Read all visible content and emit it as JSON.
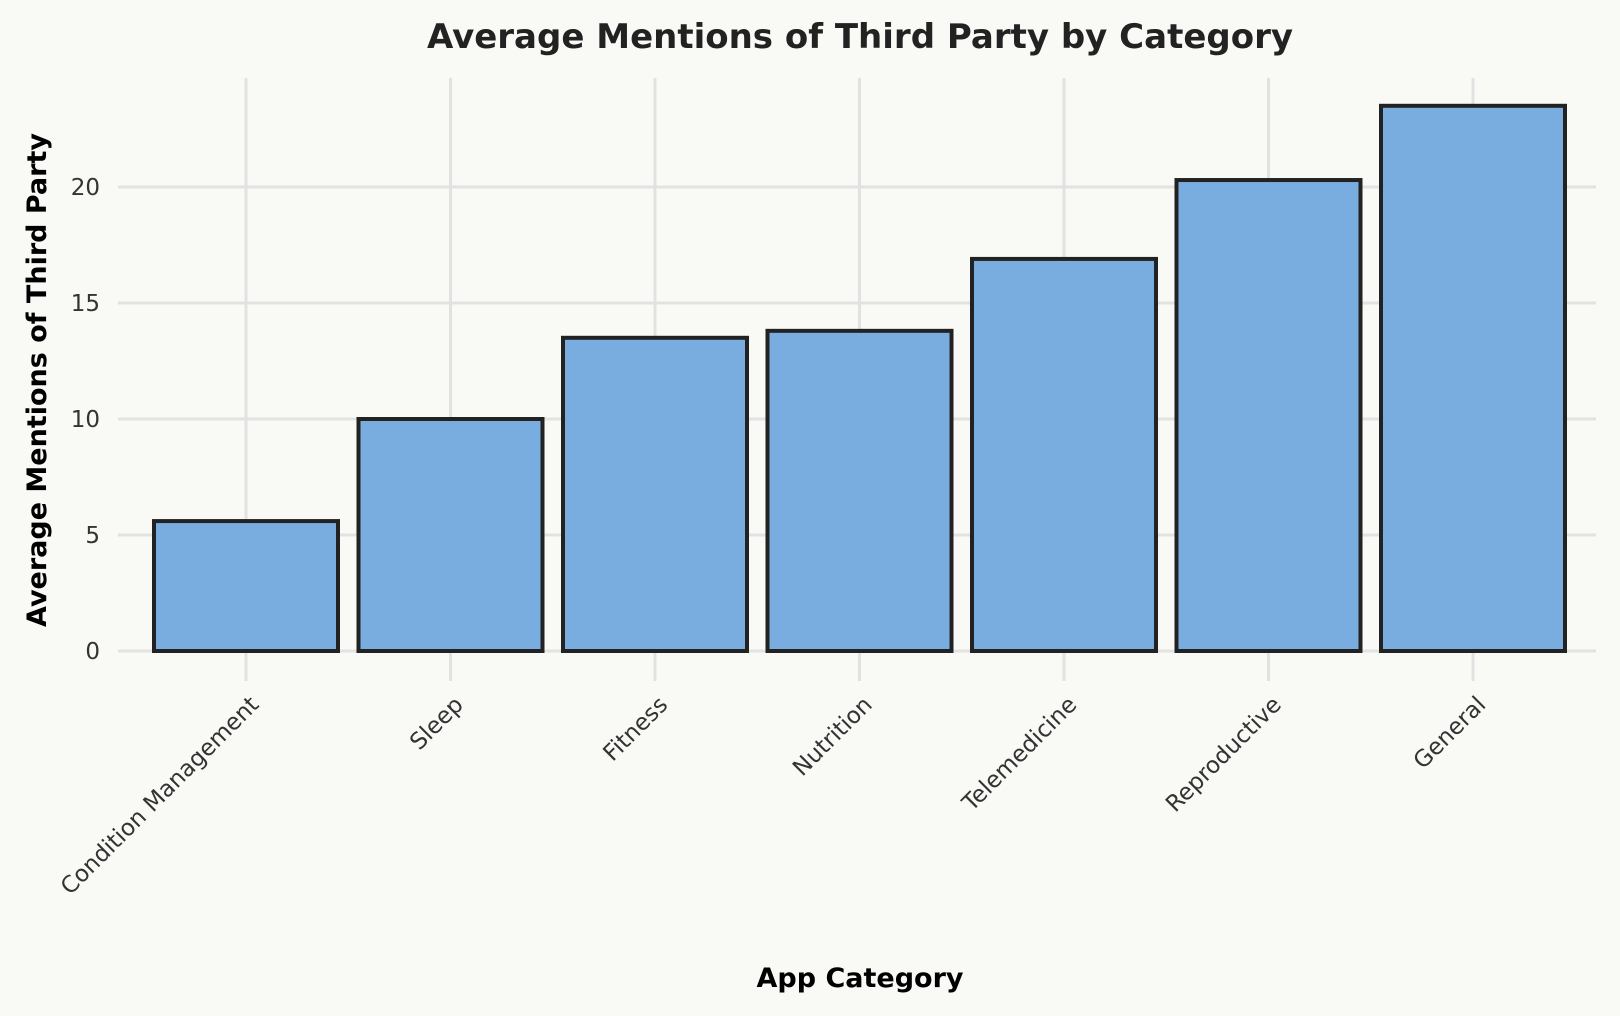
{
  "chart_data": {
    "type": "bar",
    "title": "Average Mentions of Third Party by Category",
    "xlabel": "App Category",
    "ylabel": "Average Mentions of Third Party",
    "categories": [
      "Condition Management",
      "Sleep",
      "Fitness",
      "Nutrition",
      "Telemedicine",
      "Reproductive",
      "General"
    ],
    "values": [
      5.6,
      10.0,
      13.5,
      13.8,
      16.9,
      20.3,
      23.5
    ],
    "ylim": [
      0,
      25
    ],
    "yticks": [
      0,
      5,
      10,
      15,
      20
    ],
    "grid": true,
    "legend": "none",
    "bar_color": "#7aaddf",
    "edge_color": "#222222"
  }
}
